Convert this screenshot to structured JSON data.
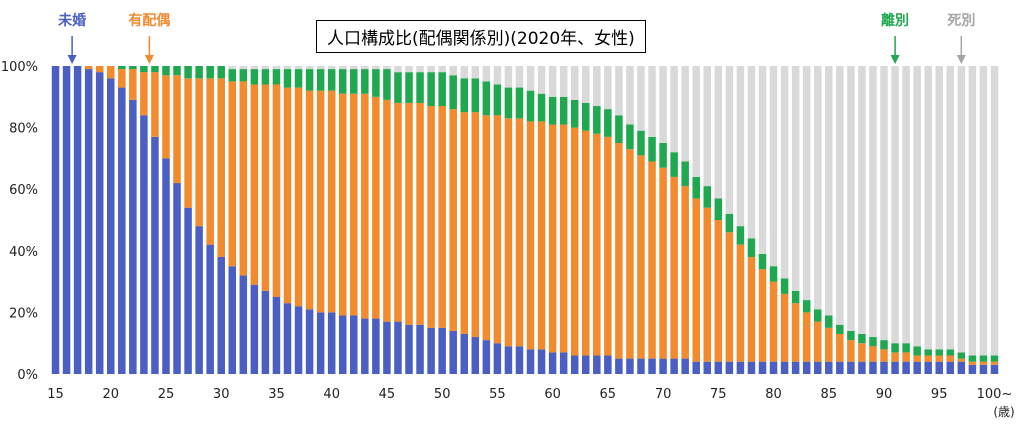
{
  "chart_data": {
    "type": "bar",
    "stacked": true,
    "normalized": true,
    "title": "人口構成比(配偶関係別)(2020年、女性)",
    "xlabel": "(歳)",
    "x_start": 15,
    "x_end": 100,
    "x_last_label": "100~",
    "x_ticks": [
      "15",
      "20",
      "25",
      "30",
      "35",
      "40",
      "45",
      "50",
      "55",
      "60",
      "65",
      "70",
      "75",
      "80",
      "85",
      "90",
      "95",
      "100~"
    ],
    "y_ticks": [
      "0%",
      "20%",
      "40%",
      "60%",
      "80%",
      "100%"
    ],
    "ylim": [
      0,
      100
    ],
    "grid": false,
    "series": [
      {
        "name": "未婚",
        "color": "#4a5fc1",
        "values": [
          100,
          100,
          100,
          99,
          98,
          96,
          93,
          89,
          84,
          77,
          70,
          62,
          54,
          48,
          42,
          38,
          35,
          32,
          29,
          27,
          25,
          23,
          22,
          21,
          20,
          20,
          19,
          19,
          18,
          18,
          17,
          17,
          16,
          16,
          15,
          15,
          14,
          13,
          12,
          11,
          10,
          9,
          9,
          8,
          8,
          7,
          7,
          6,
          6,
          6,
          6,
          5,
          5,
          5,
          5,
          5,
          5,
          5,
          4,
          4,
          4,
          4,
          4,
          4,
          4,
          4,
          4,
          4,
          4,
          4,
          4,
          4,
          4,
          4,
          4,
          4,
          4,
          4,
          4,
          4,
          4,
          4,
          4,
          3,
          3,
          3
        ]
      },
      {
        "name": "有配偶",
        "color": "#f28a2e",
        "values": [
          0,
          0,
          0,
          1,
          2,
          4,
          6,
          10,
          14,
          21,
          27,
          35,
          42,
          48,
          54,
          58,
          60,
          63,
          65,
          67,
          69,
          70,
          71,
          71,
          72,
          72,
          72,
          72,
          73,
          72,
          72,
          71,
          72,
          72,
          72,
          72,
          72,
          72,
          73,
          73,
          74,
          74,
          74,
          74,
          74,
          74,
          74,
          74,
          73,
          72,
          71,
          70,
          68,
          66,
          64,
          62,
          59,
          56,
          53,
          50,
          46,
          42,
          38,
          34,
          30,
          26,
          22,
          19,
          16,
          13,
          11,
          9,
          7,
          6,
          5,
          4,
          3,
          3,
          2,
          2,
          2,
          2,
          1,
          1,
          1,
          1
        ]
      },
      {
        "name": "離別",
        "color": "#1fa84f",
        "values": [
          0,
          0,
          0,
          0,
          0,
          0,
          1,
          1,
          2,
          2,
          3,
          3,
          4,
          4,
          4,
          4,
          4,
          4,
          5,
          5,
          5,
          6,
          6,
          7,
          7,
          7,
          8,
          8,
          8,
          9,
          10,
          10,
          10,
          10,
          11,
          11,
          11,
          11,
          11,
          11,
          10,
          10,
          10,
          10,
          9,
          9,
          9,
          9,
          9,
          9,
          9,
          9,
          8,
          8,
          8,
          8,
          8,
          8,
          7,
          7,
          7,
          6,
          6,
          6,
          5,
          5,
          5,
          4,
          4,
          4,
          4,
          3,
          3,
          3,
          3,
          3,
          3,
          3,
          3,
          2,
          2,
          2,
          2,
          2,
          2,
          2
        ]
      },
      {
        "name": "死別",
        "color": "#d9d9d9",
        "values": [
          0,
          0,
          0,
          0,
          0,
          0,
          0,
          0,
          0,
          0,
          0,
          0,
          0,
          0,
          0,
          0,
          1,
          1,
          1,
          1,
          1,
          1,
          1,
          1,
          1,
          1,
          1,
          1,
          1,
          1,
          1,
          2,
          2,
          2,
          2,
          2,
          3,
          4,
          4,
          5,
          6,
          7,
          7,
          8,
          9,
          10,
          10,
          11,
          12,
          13,
          14,
          16,
          19,
          21,
          23,
          25,
          28,
          31,
          36,
          39,
          43,
          48,
          52,
          56,
          61,
          65,
          69,
          73,
          76,
          79,
          81,
          84,
          86,
          87,
          88,
          89,
          90,
          90,
          91,
          92,
          92,
          92,
          93,
          94,
          94,
          94
        ]
      }
    ]
  },
  "callouts": [
    {
      "label": "未婚",
      "color": "#4a5fc1",
      "age": 16.5
    },
    {
      "label": "有配偶",
      "color": "#f28a2e",
      "age": 23.5
    },
    {
      "label": "離別",
      "color": "#1fa84f",
      "age": 91
    },
    {
      "label": "死別",
      "color": "#a6a6a6",
      "age": 97
    }
  ]
}
